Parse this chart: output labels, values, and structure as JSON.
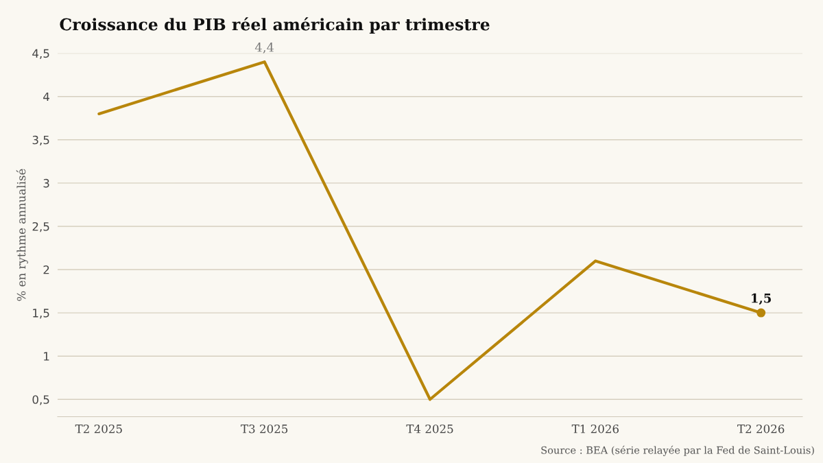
{
  "chart_data": {
    "type": "line",
    "title": "Croissance du PIB réel américain par trimestre",
    "ylabel": "% en rythme annualisé",
    "categories": [
      "T2 2025",
      "T3 2025",
      "T4 2025",
      "T1 2026",
      "T2 2026"
    ],
    "series": [
      {
        "color": "#b8860b",
        "values": [
          3.8,
          4.4,
          0.5,
          2.1,
          1.5
        ],
        "value_labels": [
          null,
          "4,4",
          null,
          null,
          null
        ]
      },
      {
        "type": "scatter",
        "color": "#b8860b",
        "values": [
          null,
          null,
          null,
          null,
          1.5
        ],
        "value_labels": [
          null,
          null,
          null,
          null,
          "1,5"
        ]
      }
    ],
    "ylim": [
      0.3,
      4.5
    ],
    "yticks": [
      {
        "value": 0.5,
        "label": "0,5"
      },
      1,
      {
        "value": 1.5,
        "label": "1,5"
      },
      2,
      {
        "value": 2.5,
        "label": "2,5"
      },
      3,
      {
        "value": 3.5,
        "label": "3,5"
      },
      4,
      {
        "value": 4.5,
        "label": "4,5"
      }
    ],
    "grid": "y",
    "legend": false,
    "annotations": [
      "Source : BEA (série relayée par la Fed de Saint-Louis)"
    ]
  }
}
